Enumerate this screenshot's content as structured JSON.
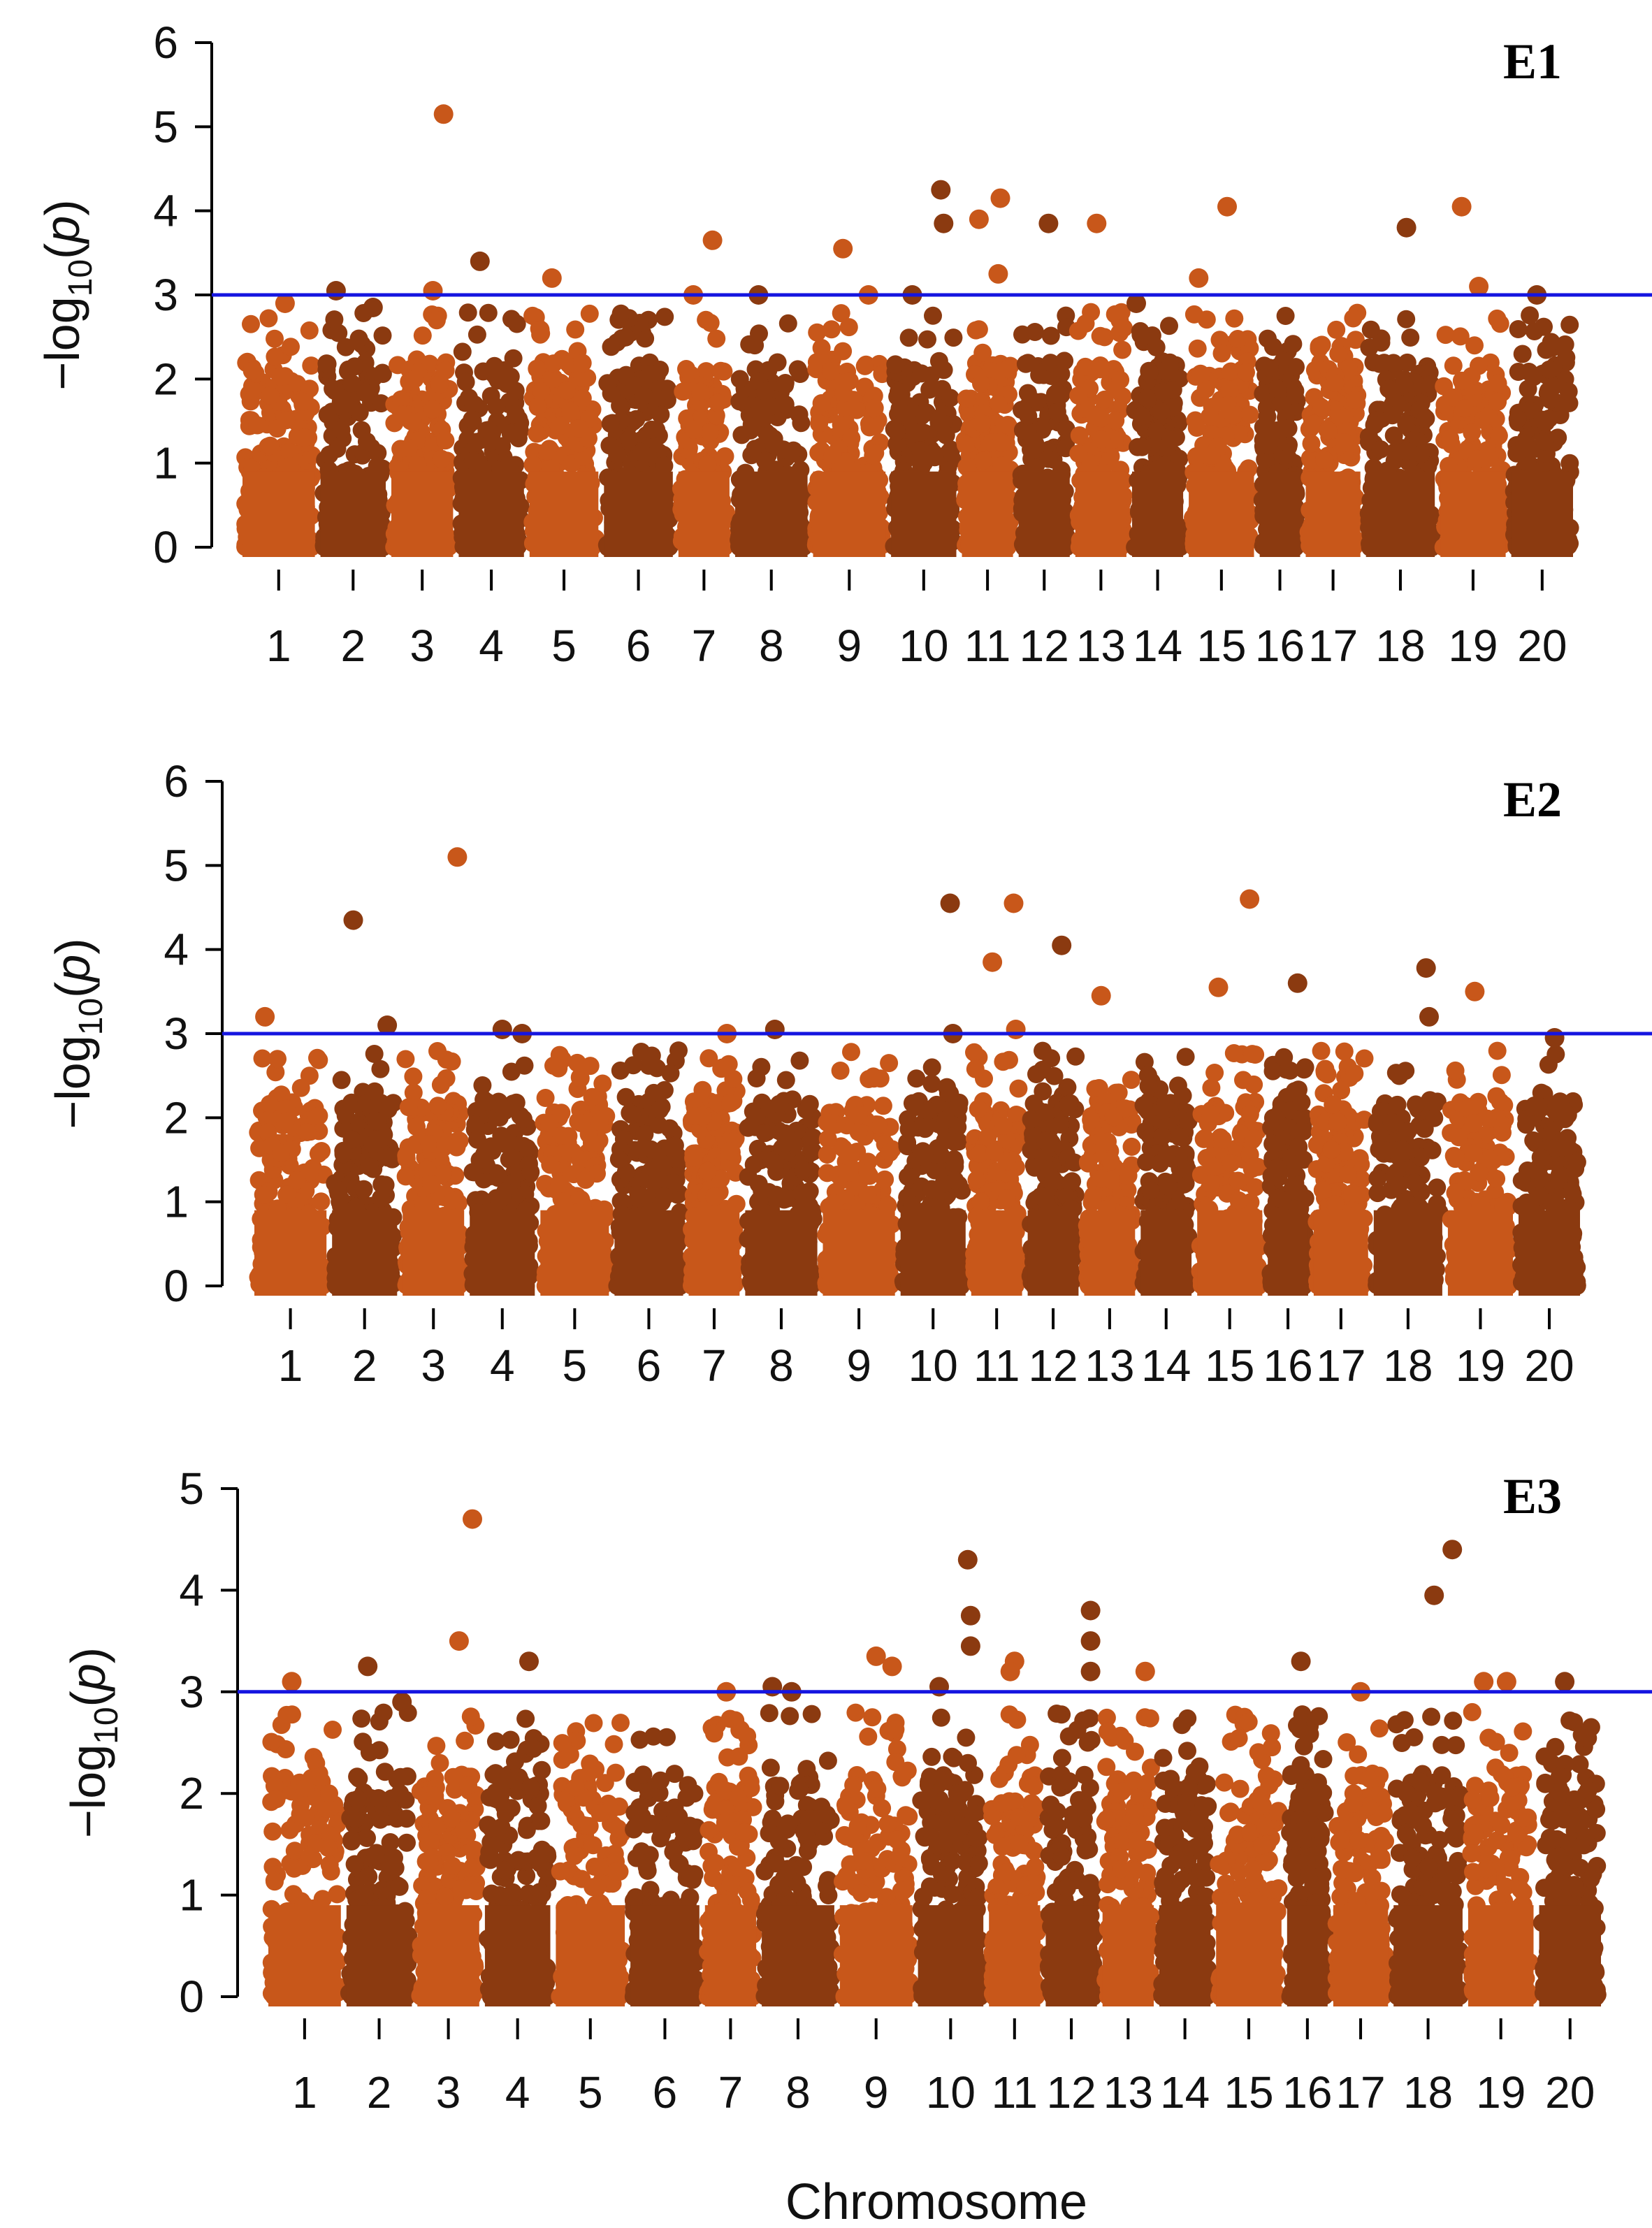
{
  "figure": {
    "xlabel": "Chromosome",
    "colors": {
      "light": "#C8571A",
      "dark": "#8B3A10",
      "threshold": "#1515E0",
      "axis": "#000000"
    }
  },
  "chart_data": [
    {
      "type": "scatter",
      "panel_label": "E1",
      "ylabel": "−log10(p)",
      "ylim": [
        0,
        6
      ],
      "yticks": [
        0,
        1,
        2,
        3,
        4,
        5,
        6
      ],
      "threshold": 3,
      "categories": [
        "1",
        "2",
        "3",
        "4",
        "5",
        "6",
        "7",
        "8",
        "9",
        "10",
        "11",
        "12",
        "13",
        "14",
        "15",
        "16",
        "17",
        "18",
        "19",
        "20"
      ],
      "peaks": [
        {
          "chr": "1",
          "pos": 0.6,
          "y": 2.9
        },
        {
          "chr": "2",
          "pos": 0.2,
          "y": 3.05
        },
        {
          "chr": "2",
          "pos": 0.85,
          "y": 2.85
        },
        {
          "chr": "3",
          "pos": 0.7,
          "y": 3.05
        },
        {
          "chr": "3",
          "pos": 0.9,
          "y": 5.15
        },
        {
          "chr": "4",
          "pos": 0.3,
          "y": 3.4
        },
        {
          "chr": "5",
          "pos": 0.3,
          "y": 3.2
        },
        {
          "chr": "7",
          "pos": 0.25,
          "y": 3.0
        },
        {
          "chr": "7",
          "pos": 0.7,
          "y": 3.65
        },
        {
          "chr": "8",
          "pos": 0.3,
          "y": 3.0
        },
        {
          "chr": "9",
          "pos": 0.4,
          "y": 3.55
        },
        {
          "chr": "9",
          "pos": 0.8,
          "y": 3.0
        },
        {
          "chr": "10",
          "pos": 0.3,
          "y": 3.0
        },
        {
          "chr": "10",
          "pos": 0.8,
          "y": 4.25
        },
        {
          "chr": "10",
          "pos": 0.85,
          "y": 3.85
        },
        {
          "chr": "11",
          "pos": 0.3,
          "y": 3.9
        },
        {
          "chr": "11",
          "pos": 0.8,
          "y": 4.15
        },
        {
          "chr": "11",
          "pos": 0.75,
          "y": 3.25
        },
        {
          "chr": "12",
          "pos": 0.6,
          "y": 3.85
        },
        {
          "chr": "13",
          "pos": 0.4,
          "y": 3.85
        },
        {
          "chr": "14",
          "pos": 0.0,
          "y": 2.9
        },
        {
          "chr": "15",
          "pos": 0.1,
          "y": 3.2
        },
        {
          "chr": "15",
          "pos": 0.6,
          "y": 4.05
        },
        {
          "chr": "18",
          "pos": 0.6,
          "y": 3.8
        },
        {
          "chr": "19",
          "pos": 0.3,
          "y": 4.05
        },
        {
          "chr": "19",
          "pos": 0.6,
          "y": 3.1
        },
        {
          "chr": "20",
          "pos": 0.4,
          "y": 3.0
        }
      ]
    },
    {
      "type": "scatter",
      "panel_label": "E2",
      "ylabel": "−log10(p)",
      "ylim": [
        0,
        6
      ],
      "yticks": [
        0,
        1,
        2,
        3,
        4,
        5,
        6
      ],
      "threshold": 3,
      "categories": [
        "1",
        "2",
        "3",
        "4",
        "5",
        "6",
        "7",
        "8",
        "9",
        "10",
        "11",
        "12",
        "13",
        "14",
        "15",
        "16",
        "17",
        "18",
        "19",
        "20"
      ],
      "peaks": [
        {
          "chr": "1",
          "pos": 0.1,
          "y": 3.2
        },
        {
          "chr": "2",
          "pos": 0.3,
          "y": 4.35
        },
        {
          "chr": "2",
          "pos": 0.9,
          "y": 3.1
        },
        {
          "chr": "3",
          "pos": 0.95,
          "y": 5.1
        },
        {
          "chr": "4",
          "pos": 0.5,
          "y": 3.05
        },
        {
          "chr": "4",
          "pos": 0.85,
          "y": 3.0
        },
        {
          "chr": "7",
          "pos": 0.8,
          "y": 3.0
        },
        {
          "chr": "8",
          "pos": 0.4,
          "y": 3.05
        },
        {
          "chr": "10",
          "pos": 0.8,
          "y": 4.55
        },
        {
          "chr": "10",
          "pos": 0.85,
          "y": 3.0
        },
        {
          "chr": "11",
          "pos": 0.4,
          "y": 3.85
        },
        {
          "chr": "11",
          "pos": 0.9,
          "y": 4.55
        },
        {
          "chr": "11",
          "pos": 0.95,
          "y": 3.05
        },
        {
          "chr": "12",
          "pos": 0.7,
          "y": 4.05
        },
        {
          "chr": "13",
          "pos": 0.3,
          "y": 3.45
        },
        {
          "chr": "15",
          "pos": 0.3,
          "y": 3.55
        },
        {
          "chr": "15",
          "pos": 0.85,
          "y": 4.6
        },
        {
          "chr": "16",
          "pos": 0.8,
          "y": 3.6
        },
        {
          "chr": "18",
          "pos": 0.8,
          "y": 3.78
        },
        {
          "chr": "18",
          "pos": 0.85,
          "y": 3.2
        },
        {
          "chr": "19",
          "pos": 0.4,
          "y": 3.5
        },
        {
          "chr": "20",
          "pos": 0.6,
          "y": 2.95
        }
      ]
    },
    {
      "type": "scatter",
      "panel_label": "E3",
      "ylabel": "−log10(p)",
      "ylim": [
        0,
        5
      ],
      "yticks": [
        0,
        1,
        2,
        3,
        4,
        5
      ],
      "threshold": 3,
      "categories": [
        "1",
        "2",
        "3",
        "4",
        "5",
        "6",
        "7",
        "8",
        "9",
        "10",
        "11",
        "12",
        "13",
        "14",
        "15",
        "16",
        "17",
        "18",
        "19",
        "20"
      ],
      "peaks": [
        {
          "chr": "1",
          "pos": 0.3,
          "y": 3.1
        },
        {
          "chr": "2",
          "pos": 0.3,
          "y": 3.25
        },
        {
          "chr": "2",
          "pos": 0.9,
          "y": 2.9
        },
        {
          "chr": "3",
          "pos": 0.7,
          "y": 3.5
        },
        {
          "chr": "3",
          "pos": 0.95,
          "y": 4.7
        },
        {
          "chr": "4",
          "pos": 0.7,
          "y": 3.3
        },
        {
          "chr": "7",
          "pos": 0.4,
          "y": 3.0
        },
        {
          "chr": "8",
          "pos": 0.1,
          "y": 3.05
        },
        {
          "chr": "8",
          "pos": 0.4,
          "y": 3.0
        },
        {
          "chr": "9",
          "pos": 0.5,
          "y": 3.35
        },
        {
          "chr": "9",
          "pos": 0.75,
          "y": 3.25
        },
        {
          "chr": "10",
          "pos": 0.3,
          "y": 3.05
        },
        {
          "chr": "10",
          "pos": 0.8,
          "y": 4.3
        },
        {
          "chr": "10",
          "pos": 0.85,
          "y": 3.75
        },
        {
          "chr": "10",
          "pos": 0.85,
          "y": 3.45
        },
        {
          "chr": "11",
          "pos": 0.5,
          "y": 3.3
        },
        {
          "chr": "11",
          "pos": 0.4,
          "y": 3.2
        },
        {
          "chr": "12",
          "pos": 0.95,
          "y": 3.8
        },
        {
          "chr": "12",
          "pos": 0.95,
          "y": 3.5
        },
        {
          "chr": "12",
          "pos": 0.95,
          "y": 3.2
        },
        {
          "chr": "13",
          "pos": 0.9,
          "y": 3.2
        },
        {
          "chr": "16",
          "pos": 0.3,
          "y": 3.3
        },
        {
          "chr": "17",
          "pos": 0.5,
          "y": 3.0
        },
        {
          "chr": "18",
          "pos": 0.6,
          "y": 3.95
        },
        {
          "chr": "18",
          "pos": 0.9,
          "y": 4.4
        },
        {
          "chr": "19",
          "pos": 0.2,
          "y": 3.1
        },
        {
          "chr": "19",
          "pos": 0.6,
          "y": 3.1
        },
        {
          "chr": "20",
          "pos": 0.4,
          "y": 3.1
        }
      ]
    }
  ]
}
